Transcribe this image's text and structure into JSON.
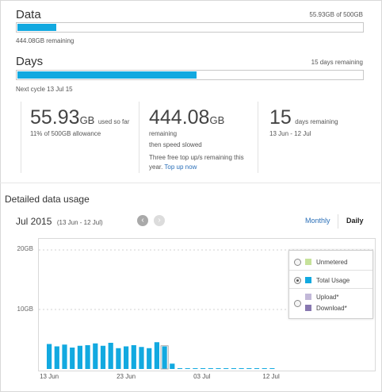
{
  "data_section": {
    "title": "Data",
    "usage_text": "55.93GB of 500GB",
    "remaining_text": "444.08GB remaining",
    "progress_fraction": 0.1119
  },
  "days_section": {
    "title": "Days",
    "remaining_text": "15 days remaining",
    "next_cycle_text": "Next cycle 13 Jul 15",
    "progress_fraction": 0.52
  },
  "stats": {
    "used": {
      "value": "55.93",
      "unit": "GB",
      "suffix": "used so far",
      "sub": "11% of 500GB allowance"
    },
    "remaining": {
      "value": "444.08",
      "unit": "GB",
      "line1": "remaining",
      "line2": "then speed slowed",
      "note": "Three free top up/s remaining this year.",
      "link": "Top up now"
    },
    "days": {
      "value": "15",
      "suffix": "days remaining",
      "range": "13 Jun - 12 Jul"
    }
  },
  "detail": {
    "heading": "Detailed data usage",
    "period": "Jul 2015",
    "period_range": "(13 Jun - 12 Jul)",
    "prev_icon": "chevron-left-icon",
    "next_icon": "chevron-right-icon",
    "view_monthly": "Monthly",
    "view_daily": "Daily",
    "active_view": "Daily"
  },
  "colors": {
    "accent": "#12a9e0",
    "unmetered": "#c6e29a",
    "upload": "#c2b8d8",
    "download": "#8878b0"
  },
  "chart_data": {
    "type": "bar",
    "ylabel_ticks": [
      "20GB",
      "10GB"
    ],
    "ylim": [
      0,
      20
    ],
    "grid": true,
    "legend_placement": "top-right",
    "x_tick_labels": [
      "13 Jun",
      "23 Jun",
      "03 Jul",
      "12 Jul"
    ],
    "x_tick_indices": [
      0,
      10,
      20,
      29
    ],
    "selected_index": 15,
    "series": [
      {
        "name": "Total Usage",
        "values": [
          4.2,
          3.8,
          4.1,
          3.6,
          3.9,
          4.0,
          4.3,
          3.9,
          4.4,
          3.5,
          3.8,
          4.0,
          3.7,
          3.5,
          4.5,
          3.8,
          0.9,
          0.1,
          0.1,
          0.1,
          0.1,
          0.1,
          0.1,
          0.1,
          0.1,
          0.1,
          0.1,
          0.1,
          0.1,
          0.1
        ]
      }
    ],
    "legend": [
      {
        "label": "Unmetered",
        "color": "#c6e29a",
        "selected": false
      },
      {
        "label": "Total Usage",
        "color": "#12a9e0",
        "selected": true
      },
      {
        "label": "Upload*",
        "color": "#c2b8d8",
        "selected": false
      },
      {
        "label": "Download*",
        "color": "#8878b0",
        "selected": false
      }
    ]
  }
}
